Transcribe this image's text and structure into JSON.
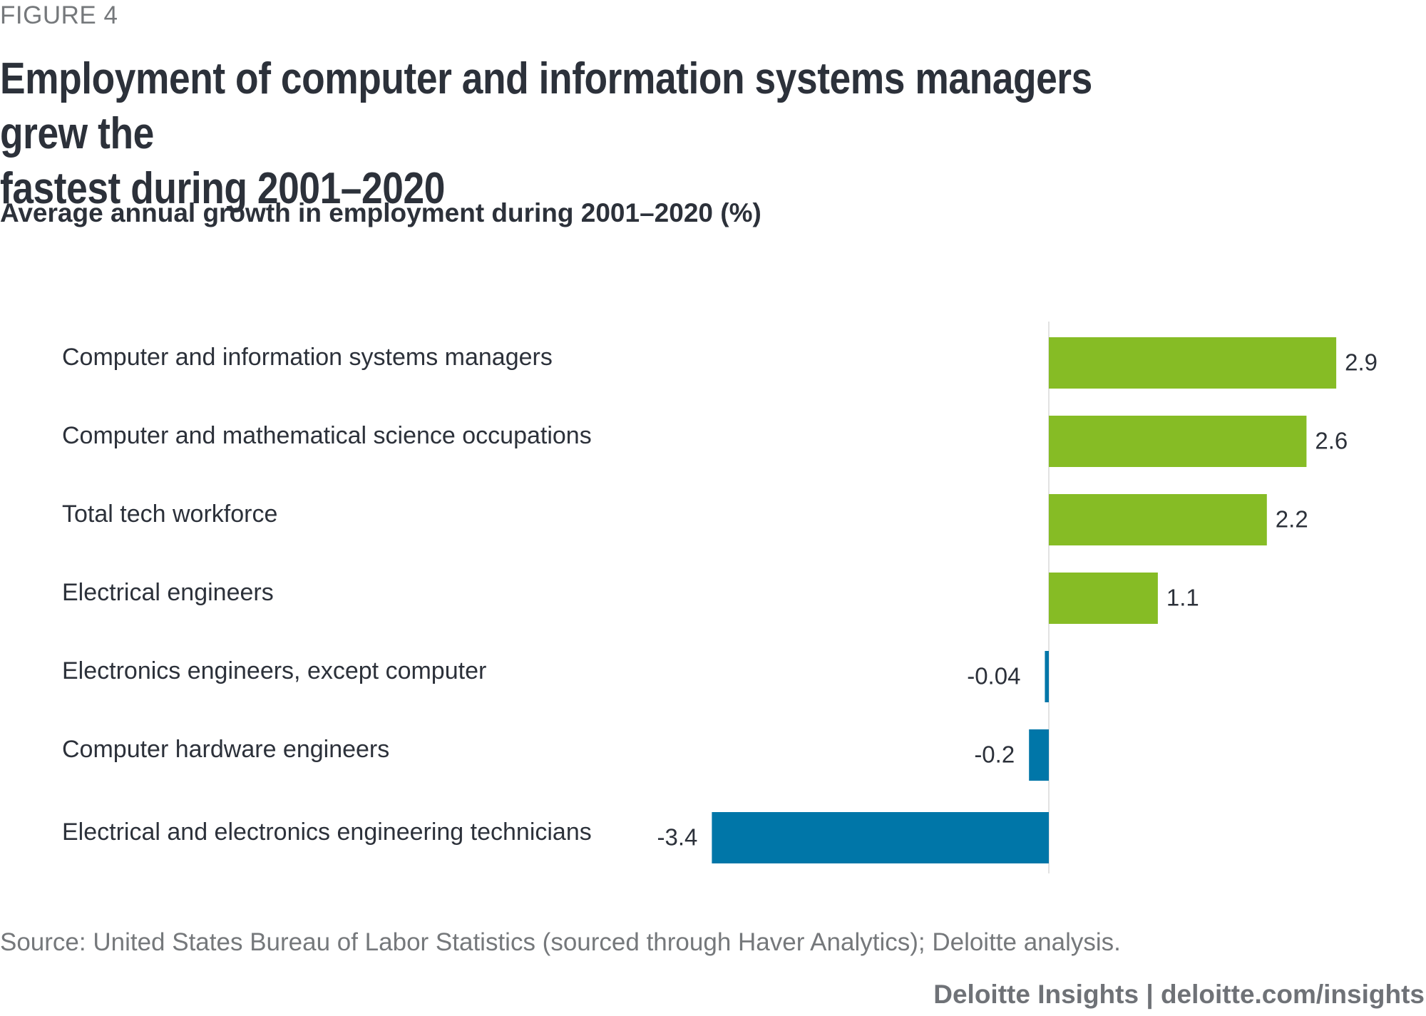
{
  "figure_label": "FIGURE 4",
  "title": "Employment of computer and information systems managers grew the fastest during 2001–2020",
  "title_lines": [
    "Employment of computer and information systems managers grew the",
    "fastest during 2001–2020"
  ],
  "subtitle": "Average annual growth in employment during 2001–2020 (%)",
  "source": "Source: United States Bureau of Labor Statistics (sourced through Haver Analytics); Deloitte analysis.",
  "footer": "Deloitte Insights | deloitte.com/insights",
  "colors": {
    "positive": "#86bc25",
    "negative": "#0076a8",
    "text": "#2c313a",
    "muted": "#75787b",
    "axis": "#d9d9d9"
  },
  "chart_data": {
    "type": "bar",
    "orientation": "horizontal",
    "title": "Employment of computer and information systems managers grew the fastest during 2001–2020",
    "subtitle": "Average annual growth in employment during 2001–2020 (%)",
    "xlabel": "",
    "ylabel": "",
    "categories": [
      "Computer and information systems managers",
      "Computer and mathematical science occupations",
      "Total tech workforce",
      "Electrical engineers",
      "Electronics engineers, except computer",
      "Computer hardware engineers",
      "Electrical and electronics engineering technicians"
    ],
    "values": [
      2.9,
      2.6,
      2.2,
      1.1,
      -0.04,
      -0.2,
      -3.4
    ],
    "value_labels": [
      "2.9",
      "2.6",
      "2.2",
      "1.1",
      "-0.04",
      "-0.2",
      "-3.4"
    ],
    "xlim": [
      -3.4,
      2.9
    ],
    "grid": false,
    "legend": "none",
    "zero_line": true
  }
}
